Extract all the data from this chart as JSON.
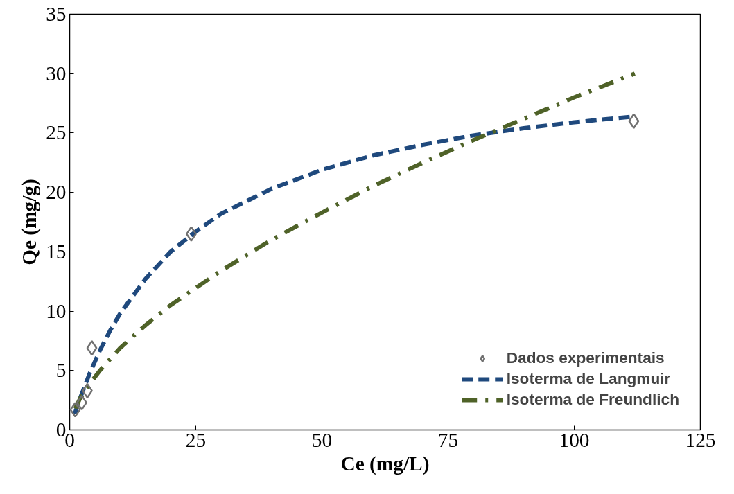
{
  "chart_data": {
    "type": "scatter",
    "xlabel": "Ce (mg/L)",
    "ylabel": "Qe (mg/g)",
    "xlim": [
      0,
      125
    ],
    "ylim": [
      0,
      35
    ],
    "xticks": [
      0,
      25,
      50,
      75,
      100,
      125
    ],
    "yticks": [
      0,
      5,
      10,
      15,
      20,
      25,
      30,
      35
    ],
    "grid": false,
    "legend": "bottom right",
    "series": [
      {
        "name": "Dados experimentais",
        "marker": "diamond",
        "color": "#707070",
        "x": [
          1.1,
          2.4,
          3.5,
          4.4,
          24.1,
          111.8
        ],
        "values": [
          1.7,
          2.3,
          3.3,
          6.9,
          16.5,
          26.0
        ]
      },
      {
        "name": "Isoterma de Langmuir",
        "type": "line",
        "line_style": "dashed",
        "color": "#1f497d",
        "x": [
          1,
          2,
          4,
          6,
          8,
          10,
          15,
          20,
          25,
          30,
          40,
          50,
          60,
          70,
          80,
          90,
          100,
          112
        ],
        "values": [
          1.36,
          2.6,
          4.8,
          6.7,
          8.35,
          9.8,
          12.7,
          15.0,
          16.7,
          18.2,
          20.3,
          21.9,
          23.1,
          24.0,
          24.8,
          25.4,
          25.9,
          26.4
        ]
      },
      {
        "name": "Isoterma de Freundlich",
        "type": "line",
        "line_style": "dashdot",
        "color": "#4f6228",
        "x": [
          1.1,
          2,
          4,
          6,
          10,
          15,
          20,
          30,
          40,
          50,
          60,
          70,
          80,
          90,
          100,
          112
        ],
        "values": [
          1.8,
          2.6,
          3.9,
          5.0,
          6.9,
          8.8,
          10.5,
          13.4,
          16.0,
          18.3,
          20.5,
          22.5,
          24.4,
          26.2,
          28.0,
          30.0
        ]
      }
    ]
  }
}
